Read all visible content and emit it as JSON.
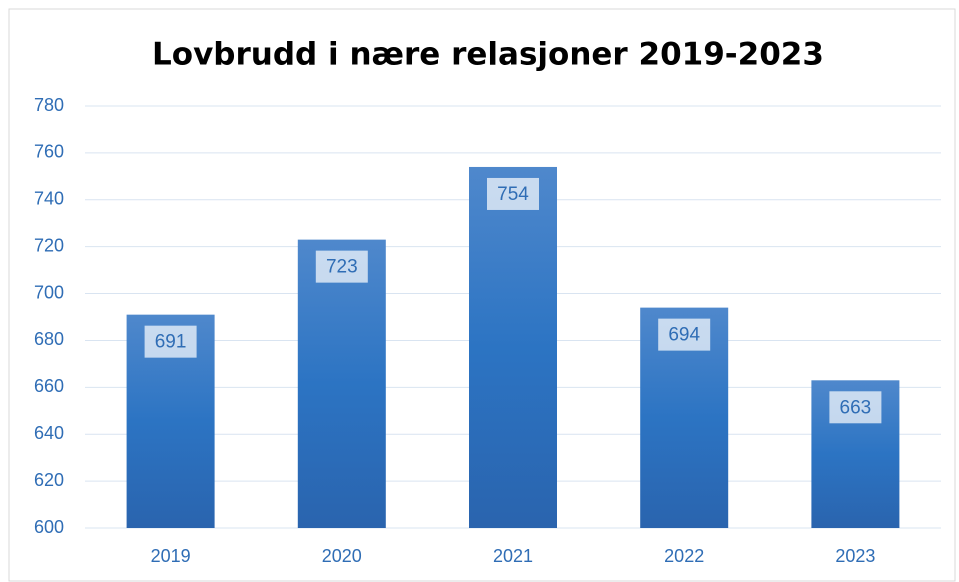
{
  "chart_data": {
    "type": "bar",
    "title": "Lovbrudd i nære relasjoner 2019-2023",
    "categories": [
      "2019",
      "2020",
      "2021",
      "2022",
      "2023"
    ],
    "values": [
      691,
      723,
      754,
      694,
      663
    ],
    "color": "#2e75c2",
    "ylim": [
      600,
      780
    ],
    "yticks": [
      600,
      620,
      640,
      660,
      680,
      700,
      720,
      740,
      760,
      780
    ],
    "grid": true,
    "data_labels": true
  }
}
